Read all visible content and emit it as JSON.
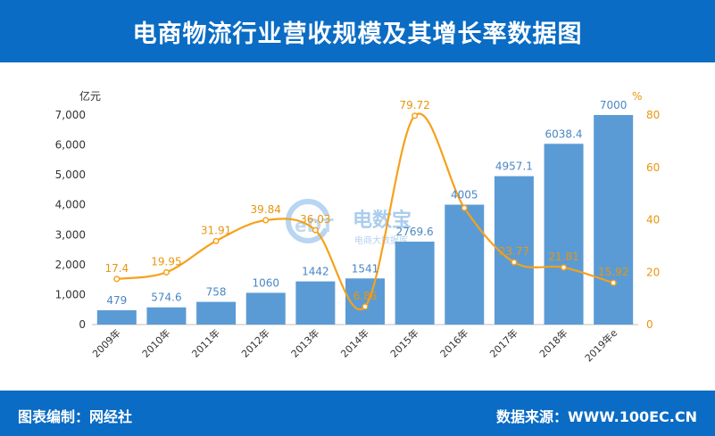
{
  "header": {
    "title": "电商物流行业营收规模及其增长率数据图"
  },
  "footer": {
    "left": "图表编制：网经社",
    "right": "数据来源：WWW.100EC.CN"
  },
  "watermark": {
    "logo_text": "eDT",
    "brand": "电数宝",
    "sub": "电商大数据库"
  },
  "colors": {
    "header_bg": "#0a6cc4",
    "bar": "#5b9bd5",
    "line": "#f5a11c",
    "rate_text": "#e8960c",
    "bar_text": "#4a87c4"
  },
  "chart_data": {
    "type": "bar+line",
    "categories": [
      "2009年",
      "2010年",
      "2011年",
      "2012年",
      "2013年",
      "2014年",
      "2015年",
      "2016年",
      "2017年",
      "2018年",
      "2019年e"
    ],
    "series": [
      {
        "values": [
          479,
          574.6,
          758,
          1060,
          1442,
          1541,
          2769.6,
          4005,
          4957.1,
          6038.4,
          7000
        ],
        "axis": "left",
        "kind": "bar"
      },
      {
        "values": [
          17.4,
          19.95,
          31.91,
          39.84,
          36.03,
          6.86,
          79.72,
          44.5,
          23.77,
          21.81,
          15.92
        ],
        "axis": "right",
        "kind": "line",
        "smooth": true
      }
    ],
    "bar_labels": [
      "479",
      "574.6",
      "758",
      "1060",
      "1442",
      "1541",
      "2769.6",
      "4005",
      "4957.1",
      "6038.4",
      "7000"
    ],
    "rate_labels": [
      "17.4",
      "19.95",
      "31.91",
      "39.84",
      "36.03",
      "6.86",
      "79.72",
      "",
      "23.77",
      "21.81",
      "15.92"
    ],
    "ylabel_left": "亿元",
    "ylabel_right": "%",
    "ylim_left": [
      0,
      7000
    ],
    "yticks_left": [
      "0",
      "1,000",
      "2,000",
      "3,000",
      "4,000",
      "5,000",
      "6,000",
      "7,000"
    ],
    "ylim_right": [
      0,
      80
    ],
    "yticks_right": [
      "0",
      "20",
      "40",
      "60",
      "80"
    ],
    "grid": false
  }
}
